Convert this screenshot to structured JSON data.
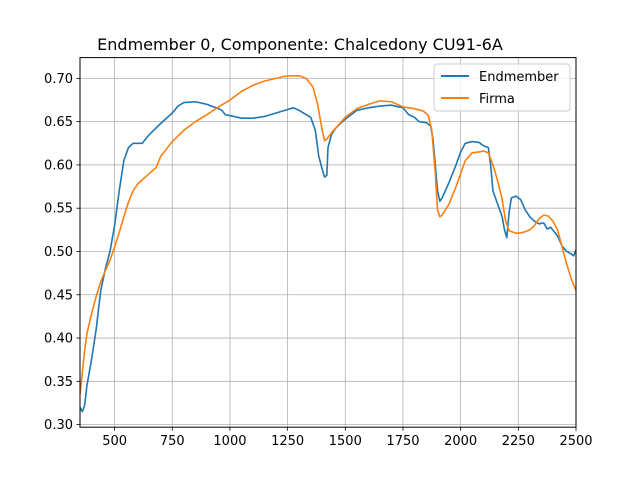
{
  "chart_data": {
    "type": "line",
    "title": "Endmember 0, Componente: Chalcedony CU91-6A",
    "xlabel": "",
    "ylabel": "",
    "xlim": [
      350,
      2500
    ],
    "ylim": [
      0.297,
      0.724
    ],
    "xticks": [
      500,
      750,
      1000,
      1250,
      1500,
      1750,
      2000,
      2250,
      2500
    ],
    "yticks": [
      0.3,
      0.35,
      0.4,
      0.45,
      0.5,
      0.55,
      0.6,
      0.65,
      0.7
    ],
    "ytick_labels": [
      "0.30",
      "0.35",
      "0.40",
      "0.45",
      "0.50",
      "0.55",
      "0.60",
      "0.65",
      "0.70"
    ],
    "grid": true,
    "legend_position": "top-right",
    "series": [
      {
        "name": "Endmember",
        "color": "#1f77b4",
        "points": [
          [
            350,
            0.32
          ],
          [
            360,
            0.315
          ],
          [
            370,
            0.322
          ],
          [
            380,
            0.345
          ],
          [
            400,
            0.375
          ],
          [
            420,
            0.41
          ],
          [
            440,
            0.455
          ],
          [
            460,
            0.48
          ],
          [
            480,
            0.5
          ],
          [
            500,
            0.53
          ],
          [
            520,
            0.57
          ],
          [
            540,
            0.605
          ],
          [
            560,
            0.62
          ],
          [
            580,
            0.625
          ],
          [
            600,
            0.625
          ],
          [
            620,
            0.625
          ],
          [
            650,
            0.635
          ],
          [
            700,
            0.648
          ],
          [
            750,
            0.66
          ],
          [
            775,
            0.668
          ],
          [
            800,
            0.672
          ],
          [
            850,
            0.673
          ],
          [
            900,
            0.67
          ],
          [
            950,
            0.665
          ],
          [
            965,
            0.663
          ],
          [
            980,
            0.658
          ],
          [
            1000,
            0.657
          ],
          [
            1050,
            0.654
          ],
          [
            1100,
            0.654
          ],
          [
            1150,
            0.656
          ],
          [
            1200,
            0.66
          ],
          [
            1250,
            0.664
          ],
          [
            1275,
            0.666
          ],
          [
            1300,
            0.663
          ],
          [
            1350,
            0.655
          ],
          [
            1370,
            0.64
          ],
          [
            1385,
            0.61
          ],
          [
            1400,
            0.595
          ],
          [
            1410,
            0.586
          ],
          [
            1420,
            0.588
          ],
          [
            1425,
            0.62
          ],
          [
            1440,
            0.635
          ],
          [
            1460,
            0.643
          ],
          [
            1500,
            0.653
          ],
          [
            1550,
            0.663
          ],
          [
            1600,
            0.666
          ],
          [
            1650,
            0.668
          ],
          [
            1700,
            0.669
          ],
          [
            1750,
            0.666
          ],
          [
            1775,
            0.658
          ],
          [
            1800,
            0.655
          ],
          [
            1820,
            0.65
          ],
          [
            1850,
            0.649
          ],
          [
            1870,
            0.645
          ],
          [
            1880,
            0.63
          ],
          [
            1890,
            0.6
          ],
          [
            1900,
            0.57
          ],
          [
            1910,
            0.558
          ],
          [
            1920,
            0.562
          ],
          [
            1950,
            0.58
          ],
          [
            1980,
            0.6
          ],
          [
            2000,
            0.615
          ],
          [
            2020,
            0.625
          ],
          [
            2050,
            0.627
          ],
          [
            2080,
            0.626
          ],
          [
            2100,
            0.622
          ],
          [
            2120,
            0.62
          ],
          [
            2130,
            0.6
          ],
          [
            2140,
            0.57
          ],
          [
            2160,
            0.555
          ],
          [
            2180,
            0.54
          ],
          [
            2190,
            0.525
          ],
          [
            2200,
            0.516
          ],
          [
            2210,
            0.545
          ],
          [
            2220,
            0.562
          ],
          [
            2240,
            0.564
          ],
          [
            2260,
            0.56
          ],
          [
            2280,
            0.548
          ],
          [
            2300,
            0.54
          ],
          [
            2320,
            0.535
          ],
          [
            2340,
            0.532
          ],
          [
            2360,
            0.533
          ],
          [
            2375,
            0.526
          ],
          [
            2390,
            0.528
          ],
          [
            2420,
            0.518
          ],
          [
            2440,
            0.506
          ],
          [
            2460,
            0.5
          ],
          [
            2480,
            0.497
          ],
          [
            2490,
            0.495
          ],
          [
            2500,
            0.502
          ]
        ]
      },
      {
        "name": "Firma",
        "color": "#ff7f0e",
        "points": [
          [
            350,
            0.335
          ],
          [
            360,
            0.36
          ],
          [
            370,
            0.385
          ],
          [
            380,
            0.405
          ],
          [
            400,
            0.428
          ],
          [
            420,
            0.448
          ],
          [
            440,
            0.465
          ],
          [
            460,
            0.478
          ],
          [
            480,
            0.49
          ],
          [
            500,
            0.505
          ],
          [
            520,
            0.522
          ],
          [
            540,
            0.54
          ],
          [
            560,
            0.557
          ],
          [
            580,
            0.57
          ],
          [
            600,
            0.578
          ],
          [
            650,
            0.59
          ],
          [
            680,
            0.597
          ],
          [
            700,
            0.61
          ],
          [
            750,
            0.627
          ],
          [
            800,
            0.64
          ],
          [
            850,
            0.65
          ],
          [
            900,
            0.658
          ],
          [
            950,
            0.667
          ],
          [
            1000,
            0.675
          ],
          [
            1050,
            0.685
          ],
          [
            1100,
            0.692
          ],
          [
            1150,
            0.697
          ],
          [
            1200,
            0.7
          ],
          [
            1230,
            0.702
          ],
          [
            1260,
            0.703
          ],
          [
            1300,
            0.703
          ],
          [
            1330,
            0.7
          ],
          [
            1360,
            0.69
          ],
          [
            1380,
            0.67
          ],
          [
            1400,
            0.64
          ],
          [
            1410,
            0.628
          ],
          [
            1420,
            0.63
          ],
          [
            1440,
            0.637
          ],
          [
            1460,
            0.643
          ],
          [
            1500,
            0.655
          ],
          [
            1550,
            0.665
          ],
          [
            1600,
            0.67
          ],
          [
            1650,
            0.674
          ],
          [
            1700,
            0.673
          ],
          [
            1750,
            0.667
          ],
          [
            1800,
            0.665
          ],
          [
            1840,
            0.662
          ],
          [
            1860,
            0.657
          ],
          [
            1875,
            0.64
          ],
          [
            1890,
            0.59
          ],
          [
            1900,
            0.548
          ],
          [
            1910,
            0.54
          ],
          [
            1920,
            0.542
          ],
          [
            1950,
            0.555
          ],
          [
            1980,
            0.575
          ],
          [
            2000,
            0.59
          ],
          [
            2020,
            0.605
          ],
          [
            2050,
            0.614
          ],
          [
            2080,
            0.615
          ],
          [
            2100,
            0.616
          ],
          [
            2120,
            0.614
          ],
          [
            2140,
            0.6
          ],
          [
            2160,
            0.582
          ],
          [
            2180,
            0.56
          ],
          [
            2195,
            0.535
          ],
          [
            2210,
            0.524
          ],
          [
            2240,
            0.521
          ],
          [
            2270,
            0.522
          ],
          [
            2300,
            0.525
          ],
          [
            2320,
            0.53
          ],
          [
            2340,
            0.538
          ],
          [
            2360,
            0.542
          ],
          [
            2380,
            0.541
          ],
          [
            2400,
            0.535
          ],
          [
            2420,
            0.525
          ],
          [
            2440,
            0.505
          ],
          [
            2460,
            0.485
          ],
          [
            2480,
            0.468
          ],
          [
            2500,
            0.455
          ]
        ]
      }
    ]
  }
}
